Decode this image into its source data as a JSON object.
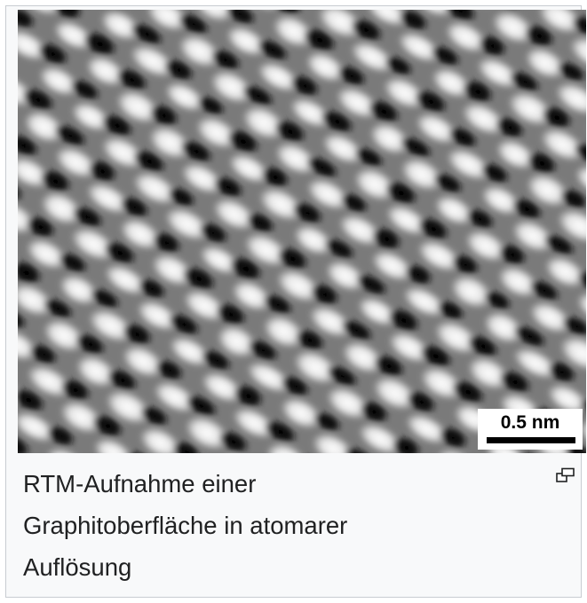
{
  "figure": {
    "scale_label": "0.5 nm",
    "caption_lines": [
      "RTM-Aufnahme einer",
      "Graphitoberfläche in atomarer",
      "Auflösung"
    ],
    "enlarge_icon": "magnify-clip-icon"
  }
}
